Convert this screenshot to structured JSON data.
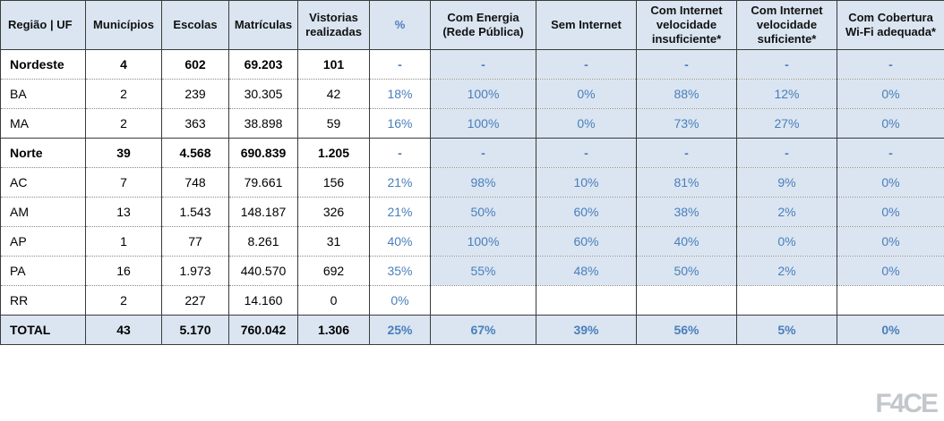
{
  "colors": {
    "header_bg": "#dae5f1",
    "blue_column_bg": "#dae5f1",
    "total_row_bg": "#dae5f1",
    "blue_text": "#4a7ebb",
    "dark_text": "#000000"
  },
  "logo": {
    "text": "F4CE"
  },
  "table": {
    "headers": [
      "Região | UF",
      "Municípios",
      "Escolas",
      "Matrículas",
      "Vistorias realizadas",
      "%",
      "Com Energia (Rede Pública)",
      "Sem Internet",
      "Com Internet velocidade insuficiente*",
      "Com Internet velocidade suficiente*",
      "Com Cobertura Wi-Fi adequada*"
    ],
    "rows": [
      {
        "type": "region",
        "cells": [
          "Nordeste",
          "4",
          "602",
          "69.203",
          "101",
          "-",
          "-",
          "-",
          "-",
          "-",
          "-"
        ]
      },
      {
        "type": "uf",
        "cells": [
          "BA",
          "2",
          "239",
          "30.305",
          "42",
          "18%",
          "100%",
          "0%",
          "88%",
          "12%",
          "0%"
        ]
      },
      {
        "type": "uf",
        "cells": [
          "MA",
          "2",
          "363",
          "38.898",
          "59",
          "16%",
          "100%",
          "0%",
          "73%",
          "27%",
          "0%"
        ]
      },
      {
        "type": "region",
        "cells": [
          "Norte",
          "39",
          "4.568",
          "690.839",
          "1.205",
          "-",
          "-",
          "-",
          "-",
          "-",
          "-"
        ]
      },
      {
        "type": "uf",
        "cells": [
          "AC",
          "7",
          "748",
          "79.661",
          "156",
          "21%",
          "98%",
          "10%",
          "81%",
          "9%",
          "0%"
        ]
      },
      {
        "type": "uf",
        "cells": [
          "AM",
          "13",
          "1.543",
          "148.187",
          "326",
          "21%",
          "50%",
          "60%",
          "38%",
          "2%",
          "0%"
        ]
      },
      {
        "type": "uf",
        "cells": [
          "AP",
          "1",
          "77",
          "8.261",
          "31",
          "40%",
          "100%",
          "60%",
          "40%",
          "0%",
          "0%"
        ]
      },
      {
        "type": "uf",
        "cells": [
          "PA",
          "16",
          "1.973",
          "440.570",
          "692",
          "35%",
          "55%",
          "48%",
          "50%",
          "2%",
          "0%"
        ]
      },
      {
        "type": "uf",
        "cells": [
          "RR",
          "2",
          "227",
          "14.160",
          "0",
          "0%",
          "",
          "",
          "",
          "",
          ""
        ]
      },
      {
        "type": "total",
        "cells": [
          "TOTAL",
          "43",
          "5.170",
          "760.042",
          "1.306",
          "25%",
          "67%",
          "39%",
          "56%",
          "5%",
          "0%"
        ]
      }
    ]
  }
}
